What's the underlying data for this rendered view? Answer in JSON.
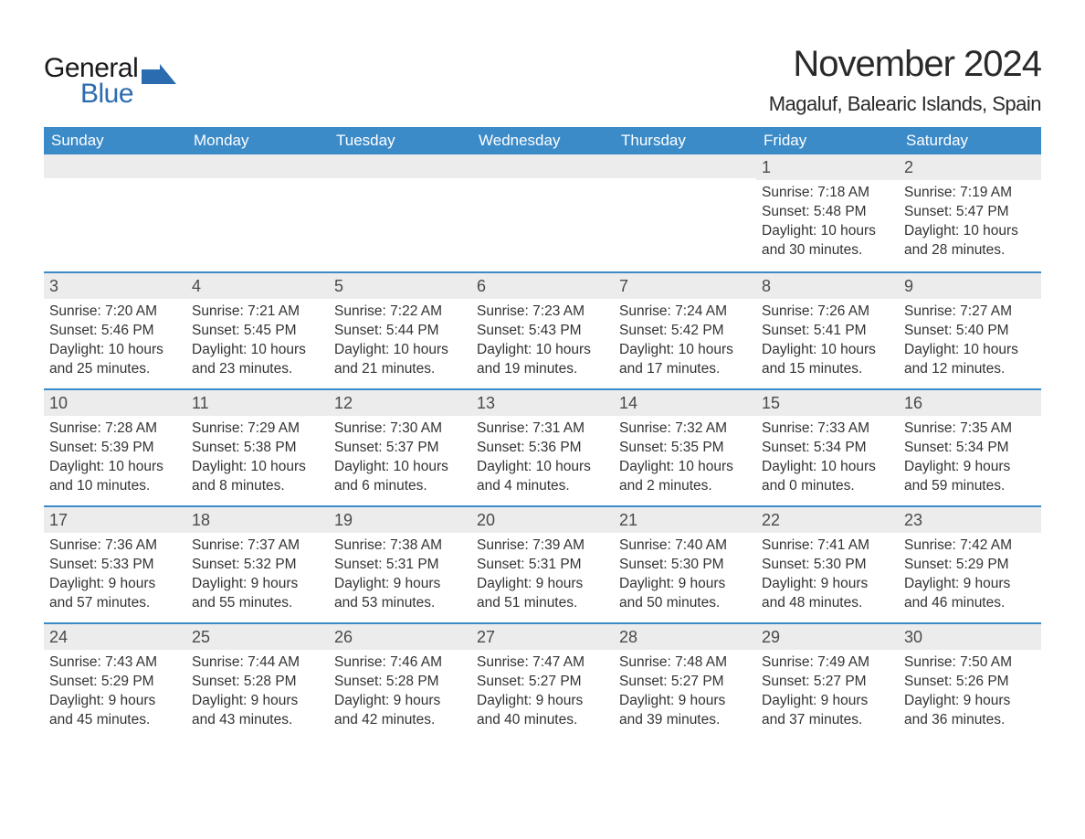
{
  "logo": {
    "word1": "General",
    "word2": "Blue",
    "accent_color": "#2b6cb0",
    "text_color": "#1a1a1a"
  },
  "title": "November 2024",
  "location": "Magaluf, Balearic Islands, Spain",
  "colors": {
    "header_bg": "#3b8bc9",
    "header_text": "#ffffff",
    "week_divider": "#3b8bc9",
    "daynum_bg": "#ececec",
    "body_text": "#333333",
    "page_bg": "#ffffff"
  },
  "day_names": [
    "Sunday",
    "Monday",
    "Tuesday",
    "Wednesday",
    "Thursday",
    "Friday",
    "Saturday"
  ],
  "weeks": [
    [
      null,
      null,
      null,
      null,
      null,
      {
        "n": "1",
        "sunrise": "Sunrise: 7:18 AM",
        "sunset": "Sunset: 5:48 PM",
        "day1": "Daylight: 10 hours",
        "day2": "and 30 minutes."
      },
      {
        "n": "2",
        "sunrise": "Sunrise: 7:19 AM",
        "sunset": "Sunset: 5:47 PM",
        "day1": "Daylight: 10 hours",
        "day2": "and 28 minutes."
      }
    ],
    [
      {
        "n": "3",
        "sunrise": "Sunrise: 7:20 AM",
        "sunset": "Sunset: 5:46 PM",
        "day1": "Daylight: 10 hours",
        "day2": "and 25 minutes."
      },
      {
        "n": "4",
        "sunrise": "Sunrise: 7:21 AM",
        "sunset": "Sunset: 5:45 PM",
        "day1": "Daylight: 10 hours",
        "day2": "and 23 minutes."
      },
      {
        "n": "5",
        "sunrise": "Sunrise: 7:22 AM",
        "sunset": "Sunset: 5:44 PM",
        "day1": "Daylight: 10 hours",
        "day2": "and 21 minutes."
      },
      {
        "n": "6",
        "sunrise": "Sunrise: 7:23 AM",
        "sunset": "Sunset: 5:43 PM",
        "day1": "Daylight: 10 hours",
        "day2": "and 19 minutes."
      },
      {
        "n": "7",
        "sunrise": "Sunrise: 7:24 AM",
        "sunset": "Sunset: 5:42 PM",
        "day1": "Daylight: 10 hours",
        "day2": "and 17 minutes."
      },
      {
        "n": "8",
        "sunrise": "Sunrise: 7:26 AM",
        "sunset": "Sunset: 5:41 PM",
        "day1": "Daylight: 10 hours",
        "day2": "and 15 minutes."
      },
      {
        "n": "9",
        "sunrise": "Sunrise: 7:27 AM",
        "sunset": "Sunset: 5:40 PM",
        "day1": "Daylight: 10 hours",
        "day2": "and 12 minutes."
      }
    ],
    [
      {
        "n": "10",
        "sunrise": "Sunrise: 7:28 AM",
        "sunset": "Sunset: 5:39 PM",
        "day1": "Daylight: 10 hours",
        "day2": "and 10 minutes."
      },
      {
        "n": "11",
        "sunrise": "Sunrise: 7:29 AM",
        "sunset": "Sunset: 5:38 PM",
        "day1": "Daylight: 10 hours",
        "day2": "and 8 minutes."
      },
      {
        "n": "12",
        "sunrise": "Sunrise: 7:30 AM",
        "sunset": "Sunset: 5:37 PM",
        "day1": "Daylight: 10 hours",
        "day2": "and 6 minutes."
      },
      {
        "n": "13",
        "sunrise": "Sunrise: 7:31 AM",
        "sunset": "Sunset: 5:36 PM",
        "day1": "Daylight: 10 hours",
        "day2": "and 4 minutes."
      },
      {
        "n": "14",
        "sunrise": "Sunrise: 7:32 AM",
        "sunset": "Sunset: 5:35 PM",
        "day1": "Daylight: 10 hours",
        "day2": "and 2 minutes."
      },
      {
        "n": "15",
        "sunrise": "Sunrise: 7:33 AM",
        "sunset": "Sunset: 5:34 PM",
        "day1": "Daylight: 10 hours",
        "day2": "and 0 minutes."
      },
      {
        "n": "16",
        "sunrise": "Sunrise: 7:35 AM",
        "sunset": "Sunset: 5:34 PM",
        "day1": "Daylight: 9 hours",
        "day2": "and 59 minutes."
      }
    ],
    [
      {
        "n": "17",
        "sunrise": "Sunrise: 7:36 AM",
        "sunset": "Sunset: 5:33 PM",
        "day1": "Daylight: 9 hours",
        "day2": "and 57 minutes."
      },
      {
        "n": "18",
        "sunrise": "Sunrise: 7:37 AM",
        "sunset": "Sunset: 5:32 PM",
        "day1": "Daylight: 9 hours",
        "day2": "and 55 minutes."
      },
      {
        "n": "19",
        "sunrise": "Sunrise: 7:38 AM",
        "sunset": "Sunset: 5:31 PM",
        "day1": "Daylight: 9 hours",
        "day2": "and 53 minutes."
      },
      {
        "n": "20",
        "sunrise": "Sunrise: 7:39 AM",
        "sunset": "Sunset: 5:31 PM",
        "day1": "Daylight: 9 hours",
        "day2": "and 51 minutes."
      },
      {
        "n": "21",
        "sunrise": "Sunrise: 7:40 AM",
        "sunset": "Sunset: 5:30 PM",
        "day1": "Daylight: 9 hours",
        "day2": "and 50 minutes."
      },
      {
        "n": "22",
        "sunrise": "Sunrise: 7:41 AM",
        "sunset": "Sunset: 5:30 PM",
        "day1": "Daylight: 9 hours",
        "day2": "and 48 minutes."
      },
      {
        "n": "23",
        "sunrise": "Sunrise: 7:42 AM",
        "sunset": "Sunset: 5:29 PM",
        "day1": "Daylight: 9 hours",
        "day2": "and 46 minutes."
      }
    ],
    [
      {
        "n": "24",
        "sunrise": "Sunrise: 7:43 AM",
        "sunset": "Sunset: 5:29 PM",
        "day1": "Daylight: 9 hours",
        "day2": "and 45 minutes."
      },
      {
        "n": "25",
        "sunrise": "Sunrise: 7:44 AM",
        "sunset": "Sunset: 5:28 PM",
        "day1": "Daylight: 9 hours",
        "day2": "and 43 minutes."
      },
      {
        "n": "26",
        "sunrise": "Sunrise: 7:46 AM",
        "sunset": "Sunset: 5:28 PM",
        "day1": "Daylight: 9 hours",
        "day2": "and 42 minutes."
      },
      {
        "n": "27",
        "sunrise": "Sunrise: 7:47 AM",
        "sunset": "Sunset: 5:27 PM",
        "day1": "Daylight: 9 hours",
        "day2": "and 40 minutes."
      },
      {
        "n": "28",
        "sunrise": "Sunrise: 7:48 AM",
        "sunset": "Sunset: 5:27 PM",
        "day1": "Daylight: 9 hours",
        "day2": "and 39 minutes."
      },
      {
        "n": "29",
        "sunrise": "Sunrise: 7:49 AM",
        "sunset": "Sunset: 5:27 PM",
        "day1": "Daylight: 9 hours",
        "day2": "and 37 minutes."
      },
      {
        "n": "30",
        "sunrise": "Sunrise: 7:50 AM",
        "sunset": "Sunset: 5:26 PM",
        "day1": "Daylight: 9 hours",
        "day2": "and 36 minutes."
      }
    ]
  ]
}
